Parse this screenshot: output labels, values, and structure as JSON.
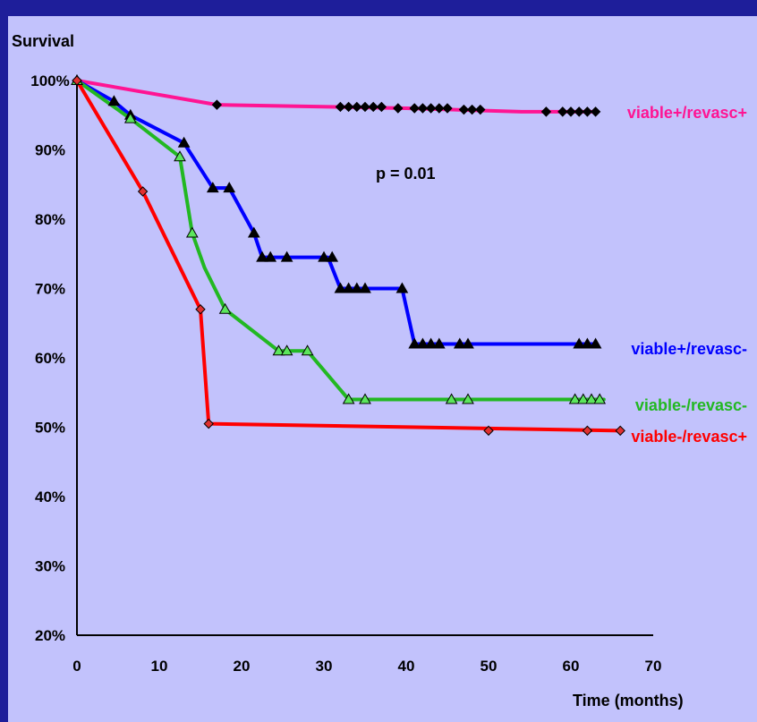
{
  "chart_data": {
    "type": "line",
    "ylabel": "Survival",
    "xlabel": "Time (months)",
    "annotation": "p = 0.01",
    "xlim": [
      0,
      70
    ],
    "ylim": [
      20,
      100
    ],
    "x_ticks": [
      0,
      10,
      20,
      30,
      40,
      50,
      60,
      70
    ],
    "y_ticks": [
      20,
      30,
      40,
      50,
      60,
      70,
      80,
      90,
      100
    ],
    "y_tick_labels": [
      "20%",
      "30%",
      "40%",
      "50%",
      "60%",
      "70%",
      "80%",
      "90%",
      "100%"
    ],
    "x_tick_labels": [
      "0",
      "10",
      "20",
      "30",
      "40",
      "50",
      "60",
      "70"
    ],
    "series": [
      {
        "name": "viable+/revasc+",
        "color": "#ff1493",
        "marker": "diamond",
        "marker_color": "#000000",
        "line": [
          [
            0,
            100
          ],
          [
            17,
            96.5
          ],
          [
            40,
            96
          ],
          [
            54,
            95.5
          ],
          [
            63,
            95.5
          ]
        ],
        "markers": [
          [
            0,
            100
          ],
          [
            17,
            96.5
          ],
          [
            32,
            96.2
          ],
          [
            33,
            96.2
          ],
          [
            34,
            96.2
          ],
          [
            35,
            96.2
          ],
          [
            36,
            96.2
          ],
          [
            37,
            96.2
          ],
          [
            39,
            96
          ],
          [
            41,
            96
          ],
          [
            42,
            96
          ],
          [
            43,
            96
          ],
          [
            44,
            96
          ],
          [
            45,
            96
          ],
          [
            47,
            95.8
          ],
          [
            48,
            95.8
          ],
          [
            49,
            95.8
          ],
          [
            57,
            95.5
          ],
          [
            59,
            95.5
          ],
          [
            60,
            95.5
          ],
          [
            61,
            95.5
          ],
          [
            62,
            95.5
          ],
          [
            63,
            95.5
          ]
        ]
      },
      {
        "name": "viable+/revasc-",
        "color": "#0000ff",
        "marker": "triangle",
        "marker_color": "#000000",
        "line": [
          [
            0,
            100
          ],
          [
            4.5,
            97
          ],
          [
            6.5,
            95
          ],
          [
            13,
            91
          ],
          [
            16.5,
            84.5
          ],
          [
            18.5,
            84.5
          ],
          [
            21.5,
            78
          ],
          [
            22.5,
            74.5
          ],
          [
            30.5,
            74.5
          ],
          [
            32,
            70
          ],
          [
            39.5,
            70
          ],
          [
            41,
            62
          ],
          [
            63,
            62
          ]
        ],
        "markers": [
          [
            0,
            100
          ],
          [
            4.5,
            97
          ],
          [
            6.5,
            95
          ],
          [
            13,
            91
          ],
          [
            16.5,
            84.5
          ],
          [
            18.5,
            84.5
          ],
          [
            21.5,
            78
          ],
          [
            22.5,
            74.5
          ],
          [
            23.5,
            74.5
          ],
          [
            25.5,
            74.5
          ],
          [
            30,
            74.5
          ],
          [
            31,
            74.5
          ],
          [
            32,
            70
          ],
          [
            33,
            70
          ],
          [
            34,
            70
          ],
          [
            35,
            70
          ],
          [
            39.5,
            70
          ],
          [
            41,
            62
          ],
          [
            42,
            62
          ],
          [
            43,
            62
          ],
          [
            44,
            62
          ],
          [
            46.5,
            62
          ],
          [
            47.5,
            62
          ],
          [
            61,
            62
          ],
          [
            62,
            62
          ],
          [
            63,
            62
          ]
        ]
      },
      {
        "name": "viable-/revasc-",
        "color": "#22b822",
        "marker": "triangle",
        "marker_color": "#5ce65c",
        "line": [
          [
            0,
            100
          ],
          [
            6.5,
            94.5
          ],
          [
            12.5,
            89
          ],
          [
            14,
            78
          ],
          [
            15.5,
            73
          ],
          [
            18,
            67
          ],
          [
            24.5,
            61
          ],
          [
            28,
            61
          ],
          [
            33,
            54
          ],
          [
            64,
            54
          ]
        ],
        "markers": [
          [
            0,
            100
          ],
          [
            6.5,
            94.5
          ],
          [
            12.5,
            89
          ],
          [
            14,
            78
          ],
          [
            18,
            67
          ],
          [
            24.5,
            61
          ],
          [
            25.5,
            61
          ],
          [
            28,
            61
          ],
          [
            33,
            54
          ],
          [
            35,
            54
          ],
          [
            45.5,
            54
          ],
          [
            47.5,
            54
          ],
          [
            60.5,
            54
          ],
          [
            61.5,
            54
          ],
          [
            62.5,
            54
          ],
          [
            63.5,
            54
          ]
        ]
      },
      {
        "name": "viable-/revasc+",
        "color": "#ff0000",
        "marker": "diamond",
        "marker_color": "#e03030",
        "line": [
          [
            0,
            100
          ],
          [
            8,
            84
          ],
          [
            15,
            67
          ],
          [
            16,
            50.5
          ],
          [
            66,
            49.5
          ]
        ],
        "markers": [
          [
            0,
            100
          ],
          [
            8,
            84
          ],
          [
            15,
            67
          ],
          [
            16,
            50.5
          ],
          [
            50,
            49.5
          ],
          [
            62,
            49.5
          ],
          [
            66,
            49.5
          ]
        ]
      }
    ]
  }
}
